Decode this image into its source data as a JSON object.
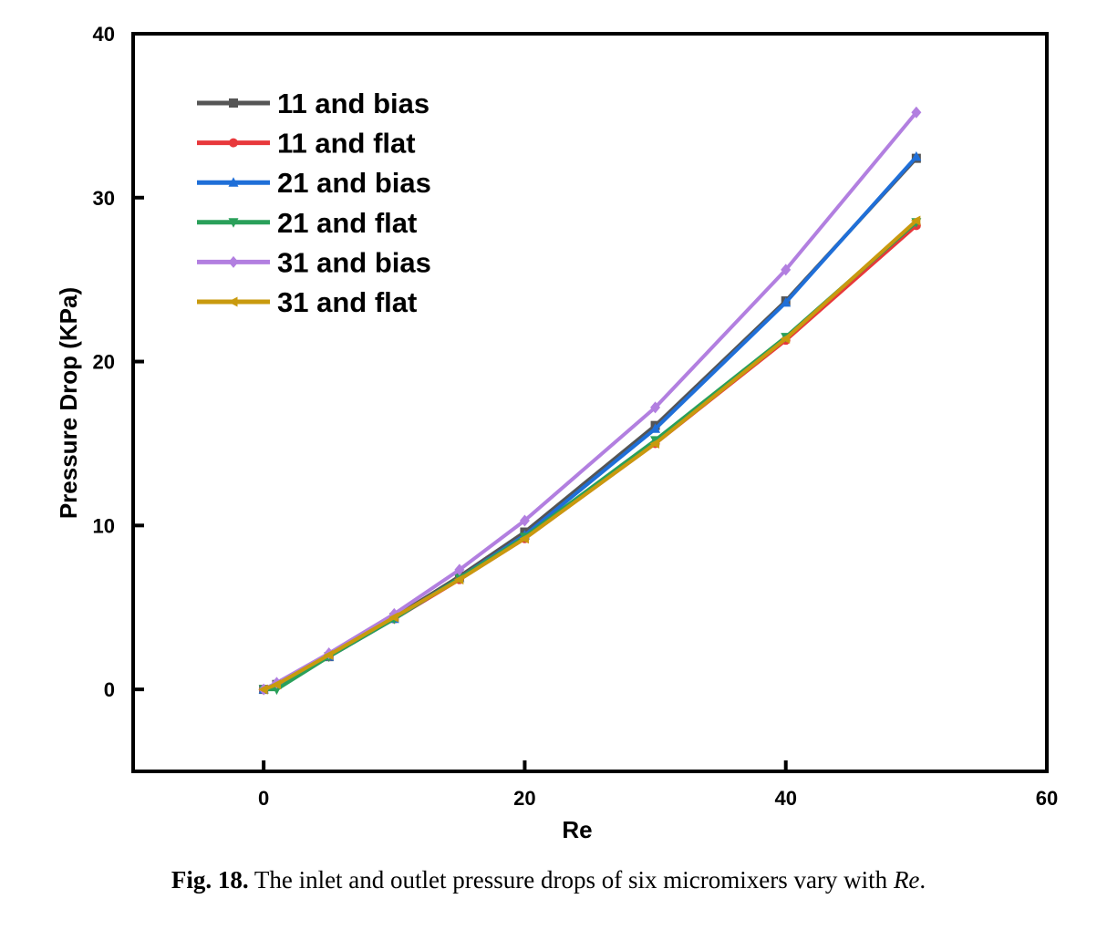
{
  "chart_data": {
    "type": "line",
    "xlabel": "Re",
    "ylabel": "Pressure Drop (KPa)",
    "xlim": [
      -10,
      60
    ],
    "ylim": [
      -5,
      40
    ],
    "xticks": [
      0,
      20,
      40,
      60
    ],
    "yticks": [
      0,
      10,
      20,
      30,
      40
    ],
    "grid": false,
    "legend_position": "top-left",
    "series": [
      {
        "name": "11 and bias",
        "color": "#555555",
        "marker": "square",
        "x": [
          0,
          1,
          5,
          10,
          15,
          20,
          30,
          40,
          50
        ],
        "y": [
          0,
          0.3,
          2.0,
          4.4,
          6.9,
          9.6,
          16.1,
          23.7,
          32.4
        ]
      },
      {
        "name": "11 and flat",
        "color": "#e8383b",
        "marker": "circle",
        "x": [
          0,
          1,
          5,
          10,
          15,
          20,
          30,
          40,
          50
        ],
        "y": [
          0,
          0.3,
          2.0,
          4.3,
          6.7,
          9.2,
          15.0,
          21.3,
          28.3
        ]
      },
      {
        "name": "21 and bias",
        "color": "#1f6fd8",
        "marker": "triangle-up",
        "x": [
          0,
          1,
          5,
          10,
          15,
          20,
          30,
          40,
          50
        ],
        "y": [
          0,
          0.3,
          2.0,
          4.3,
          6.8,
          9.4,
          15.9,
          23.6,
          32.5
        ]
      },
      {
        "name": "21 and flat",
        "color": "#2aa05a",
        "marker": "triangle-down",
        "x": [
          0,
          1,
          5,
          10,
          15,
          20,
          30,
          40,
          50
        ],
        "y": [
          0,
          0.0,
          2.0,
          4.3,
          6.8,
          9.3,
          15.2,
          21.5,
          28.5
        ]
      },
      {
        "name": "31 and bias",
        "color": "#b27fe0",
        "marker": "diamond",
        "x": [
          0,
          1,
          5,
          10,
          15,
          20,
          30,
          40,
          50
        ],
        "y": [
          0,
          0.4,
          2.2,
          4.6,
          7.3,
          10.3,
          17.2,
          25.6,
          35.2
        ]
      },
      {
        "name": "31 and flat",
        "color": "#c99a0e",
        "marker": "triangle-left",
        "x": [
          0,
          1,
          5,
          10,
          15,
          20,
          30,
          40,
          50
        ],
        "y": [
          0,
          0.3,
          2.1,
          4.4,
          6.7,
          9.2,
          15.0,
          21.4,
          28.6
        ]
      }
    ]
  },
  "caption": {
    "label": "Fig. 18.",
    "text_before": "The inlet and outlet pressure drops of six micromixers vary with ",
    "text_italic": "Re",
    "text_after": "."
  }
}
